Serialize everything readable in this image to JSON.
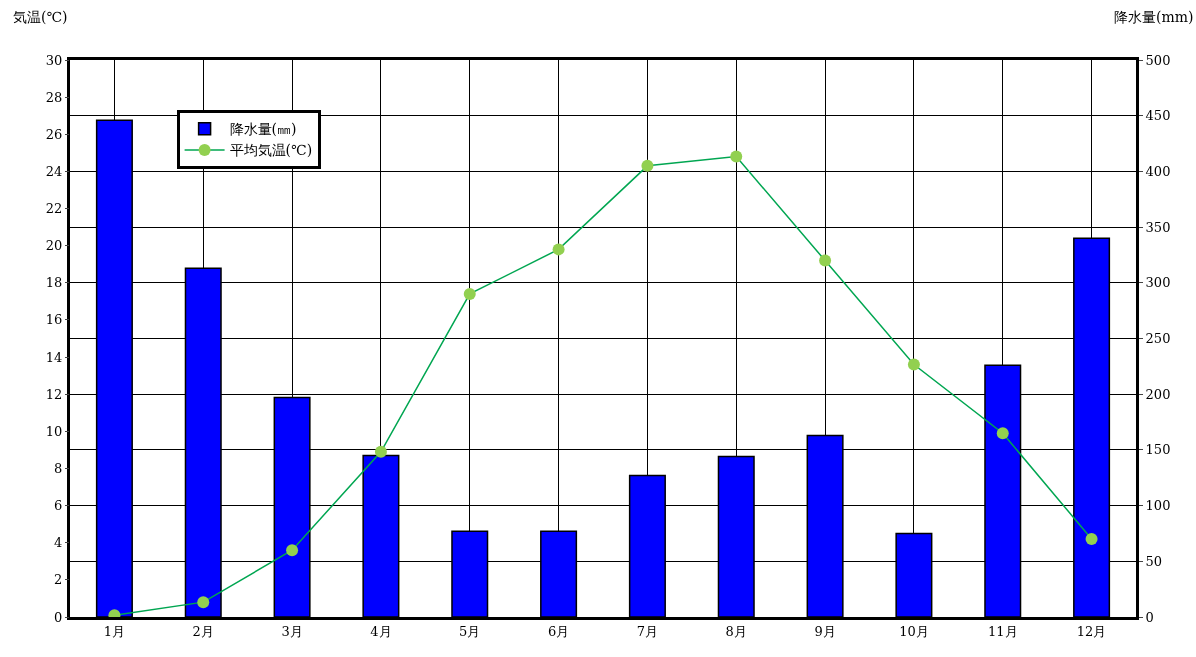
{
  "chart_data": {
    "type": "bar",
    "ylabel": "気温(℃)",
    "y2label": "降水量(mm)",
    "categories": [
      "1月",
      "2月",
      "3月",
      "4月",
      "5月",
      "6月",
      "7月",
      "8月",
      "9月",
      "10月",
      "11月",
      "12月"
    ],
    "series": [
      {
        "name": "降水量(㎜)",
        "axis": "y2",
        "color": "#0000ff",
        "values": [
          446,
          313,
          197,
          145,
          77,
          77,
          127,
          144,
          163,
          75,
          226,
          340
        ]
      },
      {
        "name": "平均気温(℃)",
        "type": "line",
        "axis": "y",
        "color": "#00a651",
        "marker": "circle",
        "values": [
          0.1,
          0.8,
          3.6,
          8.9,
          17.4,
          19.8,
          24.3,
          24.8,
          19.2,
          13.6,
          9.9,
          4.2
        ]
      }
    ],
    "ylim": [
      0,
      30
    ],
    "yticks": [
      0,
      2,
      4,
      6,
      8,
      10,
      12,
      14,
      16,
      18,
      20,
      22,
      24,
      26,
      28,
      30
    ],
    "y2lim": [
      0,
      500
    ],
    "y2ticks": [
      0,
      50,
      100,
      150,
      200,
      250,
      300,
      350,
      400,
      450,
      500
    ],
    "grid": true,
    "legend": "top left"
  }
}
